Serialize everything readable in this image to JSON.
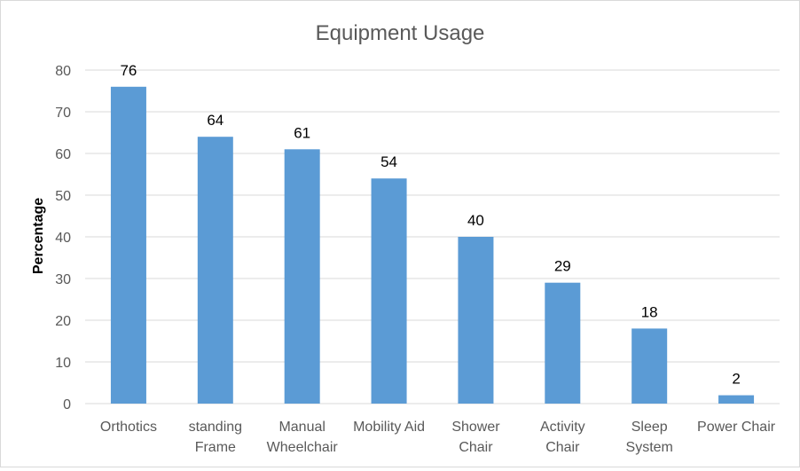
{
  "chart_data": {
    "type": "bar",
    "title": "Equipment Usage",
    "xlabel": "",
    "ylabel": "Percentage",
    "ylim": [
      0,
      80
    ],
    "yticks": [
      0,
      10,
      20,
      30,
      40,
      50,
      60,
      70,
      80
    ],
    "grid": true,
    "legend": "none",
    "categories": [
      [
        "Orthotics"
      ],
      [
        "standing",
        "Frame"
      ],
      [
        "Manual",
        "Wheelchair"
      ],
      [
        "Mobility Aid"
      ],
      [
        "Shower",
        "Chair"
      ],
      [
        "Activity",
        "Chair"
      ],
      [
        "Sleep",
        "System"
      ],
      [
        "Power Chair"
      ]
    ],
    "values": [
      76,
      64,
      61,
      54,
      40,
      29,
      18,
      2
    ],
    "colors": {
      "bar": "#5b9bd5",
      "grid": "#d9d9d9",
      "axis": "#d9d9d9",
      "tick_text": "#595959",
      "title_text": "#595959",
      "label_text": "#000000"
    }
  }
}
